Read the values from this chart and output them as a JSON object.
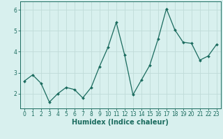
{
  "x": [
    0,
    1,
    2,
    3,
    4,
    5,
    6,
    7,
    8,
    9,
    10,
    11,
    12,
    13,
    14,
    15,
    16,
    17,
    18,
    19,
    20,
    21,
    22,
    23
  ],
  "y": [
    2.6,
    2.9,
    2.5,
    1.6,
    2.0,
    2.3,
    2.2,
    1.8,
    2.3,
    3.3,
    4.2,
    5.4,
    3.85,
    1.95,
    2.65,
    3.35,
    4.6,
    6.05,
    5.05,
    4.45,
    4.4,
    3.6,
    3.8,
    4.35
  ],
  "line_color": "#1a6b5e",
  "marker": "D",
  "marker_size": 2.0,
  "linewidth": 0.9,
  "background_color": "#d8f0ee",
  "grid_color": "#c0dbd8",
  "xlabel": "Humidex (Indice chaleur)",
  "xlabel_fontsize": 7,
  "ylabel": "",
  "ylim": [
    1.3,
    6.4
  ],
  "xlim": [
    -0.5,
    23.5
  ],
  "yticks": [
    2,
    3,
    4,
    5,
    6
  ],
  "xticks": [
    0,
    1,
    2,
    3,
    4,
    5,
    6,
    7,
    8,
    9,
    10,
    11,
    12,
    13,
    14,
    15,
    16,
    17,
    18,
    19,
    20,
    21,
    22,
    23
  ],
  "tick_color": "#1a6b5e",
  "tick_fontsize": 5.5,
  "axis_color": "#1a6b5e"
}
